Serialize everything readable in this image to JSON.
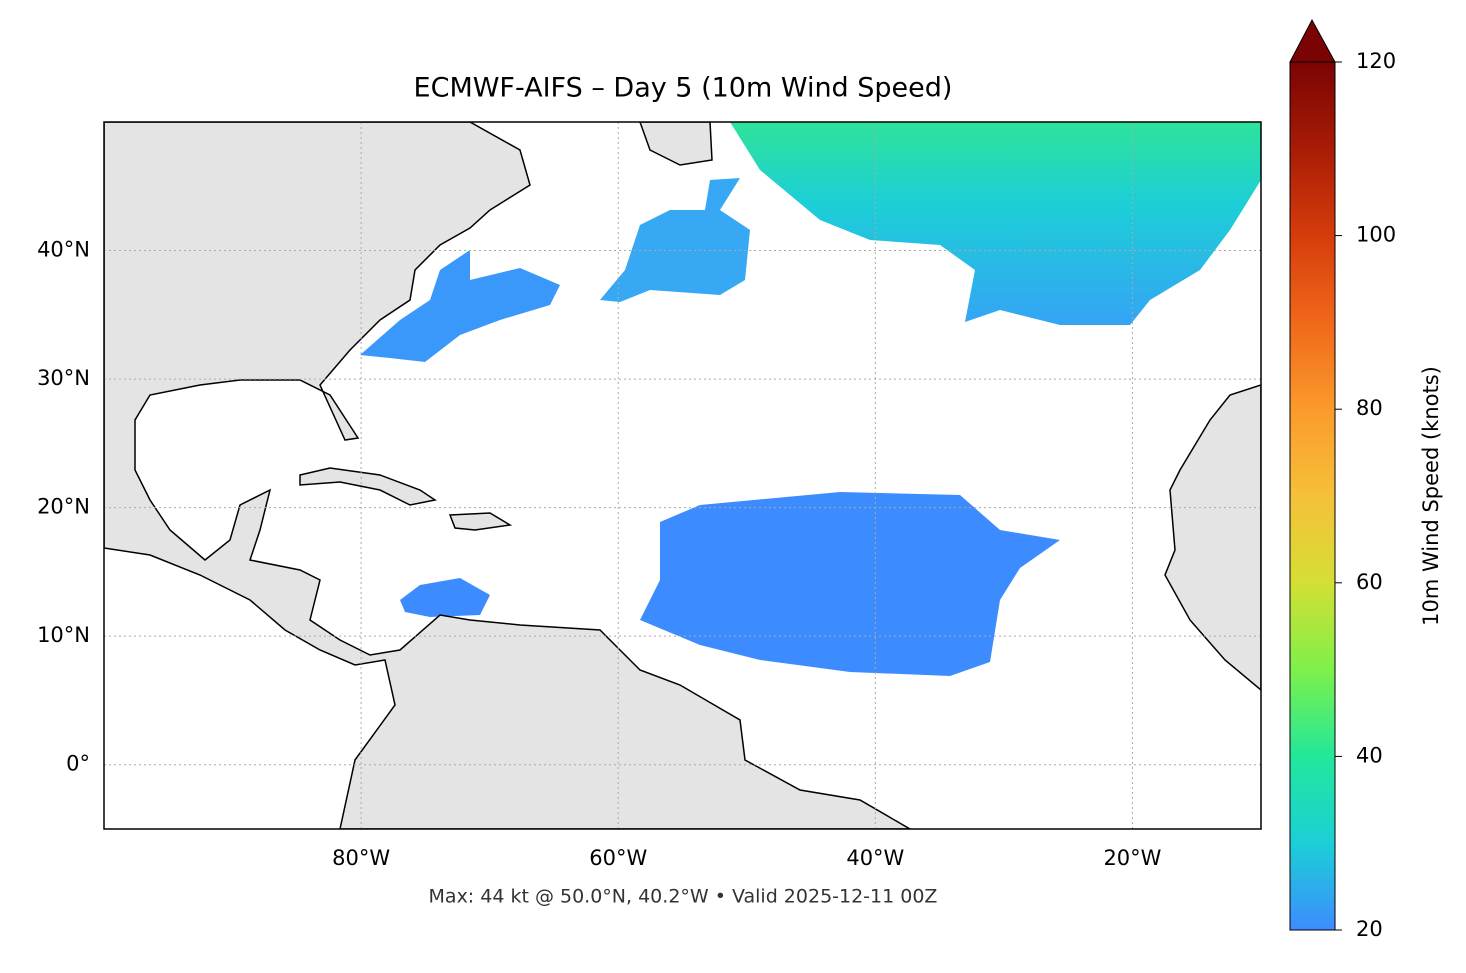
{
  "chart_data": {
    "type": "map",
    "title": "ECMWF-AIFS – Day 5 (10m Wind Speed)",
    "footer": "Max: 44 kt @ 50.0°N, 40.2°W • Valid 2025-12-11 00Z",
    "xlim": [
      -100,
      -10
    ],
    "ylim": [
      -5,
      50
    ],
    "grid": true,
    "xticks": [
      {
        "value": -80,
        "label": "80°W"
      },
      {
        "value": -60,
        "label": "60°W"
      },
      {
        "value": -40,
        "label": "40°W"
      },
      {
        "value": -20,
        "label": "20°W"
      }
    ],
    "yticks": [
      {
        "value": 0,
        "label": "0°"
      },
      {
        "value": 10,
        "label": "10°N"
      },
      {
        "value": 20,
        "label": "20°N"
      },
      {
        "value": 30,
        "label": "30°N"
      },
      {
        "value": 40,
        "label": "40°N"
      }
    ],
    "colorbar": {
      "label": "10m Wind Speed (knots)",
      "lim": [
        20,
        120
      ],
      "ticks": [
        20,
        40,
        60,
        80,
        100,
        120
      ],
      "colors": [
        "#3d8cff",
        "#1ccfd6",
        "#22e89a",
        "#7ef04a",
        "#d4df34",
        "#f6c03a",
        "#fb9a2b",
        "#f0681a",
        "#d63c0c",
        "#a81c06",
        "#7a0403"
      ]
    }
  }
}
